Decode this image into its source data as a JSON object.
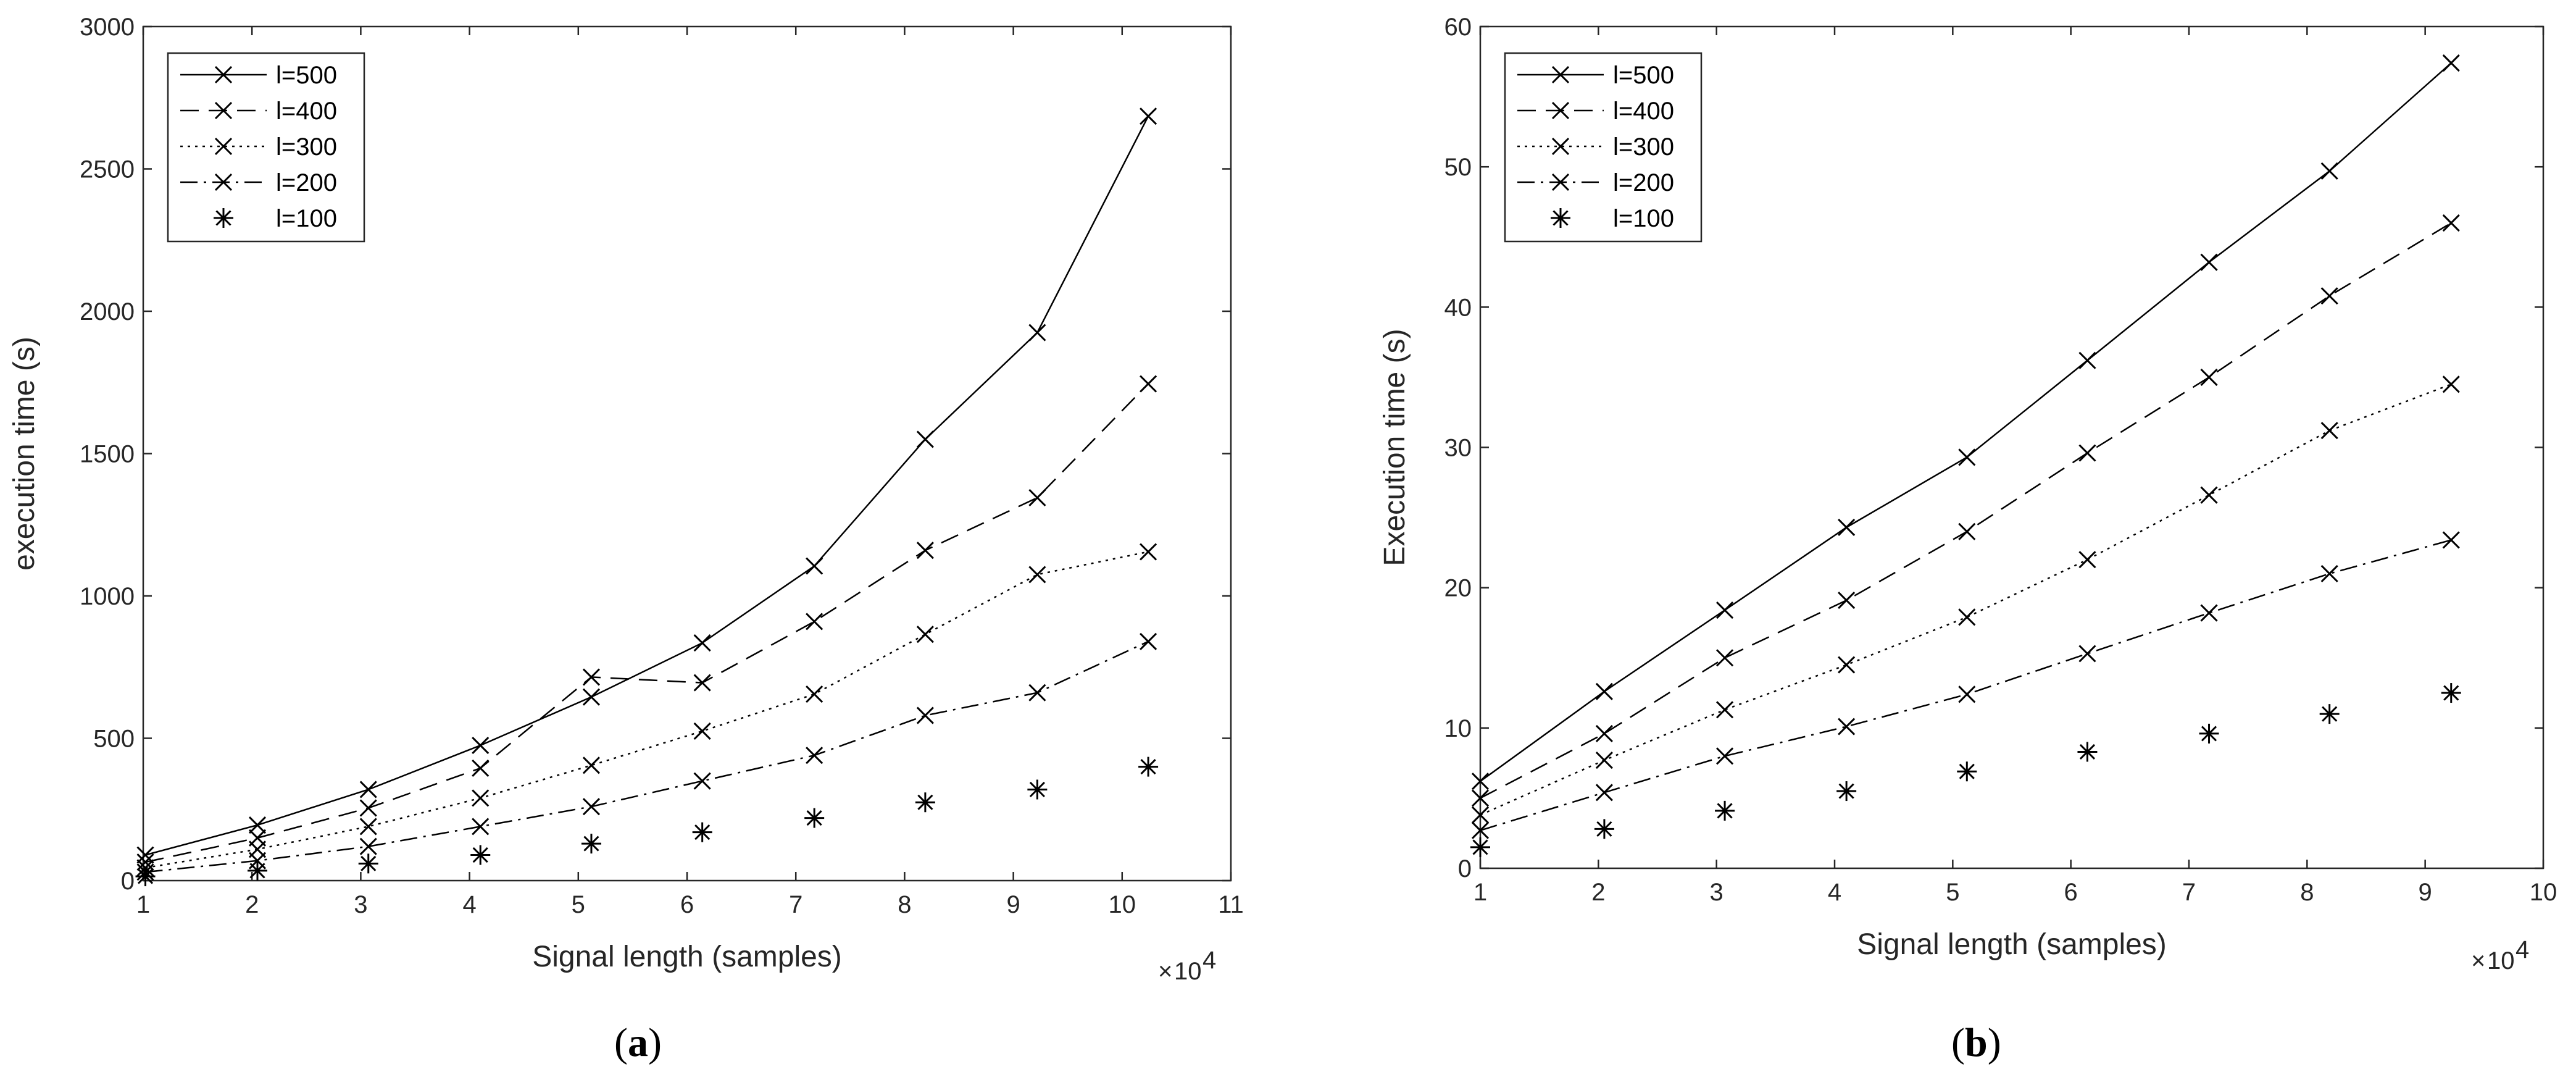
{
  "chart_data": [
    {
      "panel_label": "a",
      "type": "line",
      "title": "",
      "xlabel": "Signal length (samples)",
      "ylabel": "execution time (s)",
      "x_multiplier": "10",
      "x_multiplier_exp": "4",
      "xlim": [
        1,
        11
      ],
      "ylim": [
        0,
        3000
      ],
      "xticks": [
        1,
        2,
        3,
        4,
        5,
        6,
        7,
        8,
        9,
        10,
        11
      ],
      "yticks": [
        0,
        500,
        1000,
        1500,
        2000,
        2500,
        3000
      ],
      "grid": false,
      "legend_position": "top-left",
      "x": [
        1.02,
        2.05,
        3.07,
        4.1,
        5.12,
        6.14,
        7.17,
        8.19,
        9.22,
        10.24
      ],
      "series": [
        {
          "name": "l=500",
          "style": "solid",
          "marker": "x",
          "values": [
            90,
            195,
            320,
            475,
            645,
            835,
            1105,
            1550,
            1925,
            2685
          ]
        },
        {
          "name": "l=400",
          "style": "dashed",
          "marker": "x",
          "values": [
            65,
            150,
            255,
            395,
            715,
            695,
            910,
            1160,
            1345,
            1745
          ]
        },
        {
          "name": "l=300",
          "style": "dotted",
          "marker": "x",
          "values": [
            45,
            110,
            190,
            290,
            405,
            525,
            655,
            865,
            1075,
            1155
          ]
        },
        {
          "name": "l=200",
          "style": "dashdot",
          "marker": "x",
          "values": [
            30,
            70,
            120,
            190,
            260,
            350,
            440,
            580,
            660,
            840
          ]
        },
        {
          "name": "l=100",
          "style": "none",
          "marker": "star",
          "values": [
            15,
            35,
            60,
            90,
            130,
            170,
            220,
            275,
            320,
            400
          ]
        }
      ]
    },
    {
      "panel_label": "b",
      "type": "line",
      "title": "",
      "xlabel": "Signal length (samples)",
      "ylabel": "Execution time (s)",
      "x_multiplier": "10",
      "x_multiplier_exp": "4",
      "xlim": [
        1,
        10
      ],
      "ylim": [
        0,
        60
      ],
      "xticks": [
        1,
        2,
        3,
        4,
        5,
        6,
        7,
        8,
        9,
        10
      ],
      "yticks": [
        0,
        10,
        20,
        30,
        40,
        50,
        60
      ],
      "grid": false,
      "legend_position": "top-left",
      "x": [
        1.0,
        2.05,
        3.07,
        4.1,
        5.12,
        6.14,
        7.17,
        8.19,
        9.22
      ],
      "series": [
        {
          "name": "l=500",
          "style": "solid",
          "marker": "x",
          "values": [
            6.2,
            12.6,
            18.4,
            24.3,
            29.3,
            36.2,
            43.2,
            49.7,
            57.4
          ]
        },
        {
          "name": "l=400",
          "style": "dashed",
          "marker": "x",
          "values": [
            5.0,
            9.6,
            15.0,
            19.1,
            24.0,
            29.6,
            35.0,
            40.8,
            46.0
          ]
        },
        {
          "name": "l=300",
          "style": "dotted",
          "marker": "x",
          "values": [
            3.8,
            7.7,
            11.3,
            14.5,
            17.9,
            22.0,
            26.6,
            31.2,
            34.5
          ]
        },
        {
          "name": "l=200",
          "style": "dashdot",
          "marker": "x",
          "values": [
            2.7,
            5.4,
            8.0,
            10.1,
            12.4,
            15.3,
            18.2,
            21.0,
            23.4
          ]
        },
        {
          "name": "l=100",
          "style": "none",
          "marker": "star",
          "values": [
            1.5,
            2.8,
            4.1,
            5.5,
            6.9,
            8.3,
            9.6,
            11.0,
            12.5
          ]
        }
      ]
    }
  ]
}
